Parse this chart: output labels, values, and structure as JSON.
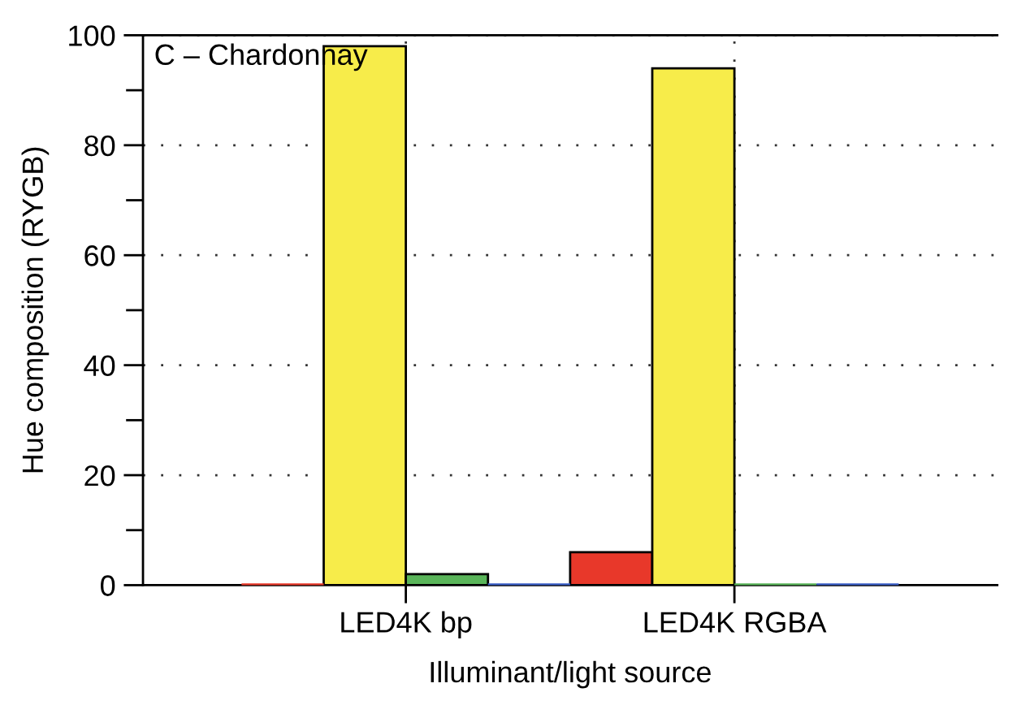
{
  "chart_data": {
    "type": "bar",
    "xlabel": "Illuminant/light source",
    "ylabel": "Hue composition (RYGB)",
    "annotations": [
      "C – Chardonnay"
    ],
    "categories": [
      "LED4K bp",
      "LED4K RGBA"
    ],
    "series": [
      {
        "color": "#e8382a",
        "values": [
          0,
          6
        ]
      },
      {
        "color": "#f7ec4a",
        "values": [
          98,
          94
        ]
      },
      {
        "color": "#5ab55a",
        "values": [
          2,
          0
        ]
      },
      {
        "color": "#3a5fc8",
        "values": [
          0,
          0
        ]
      }
    ],
    "ylim": [
      0,
      100
    ],
    "yticks": [
      0,
      20,
      40,
      60,
      80,
      100
    ],
    "grid": true
  }
}
